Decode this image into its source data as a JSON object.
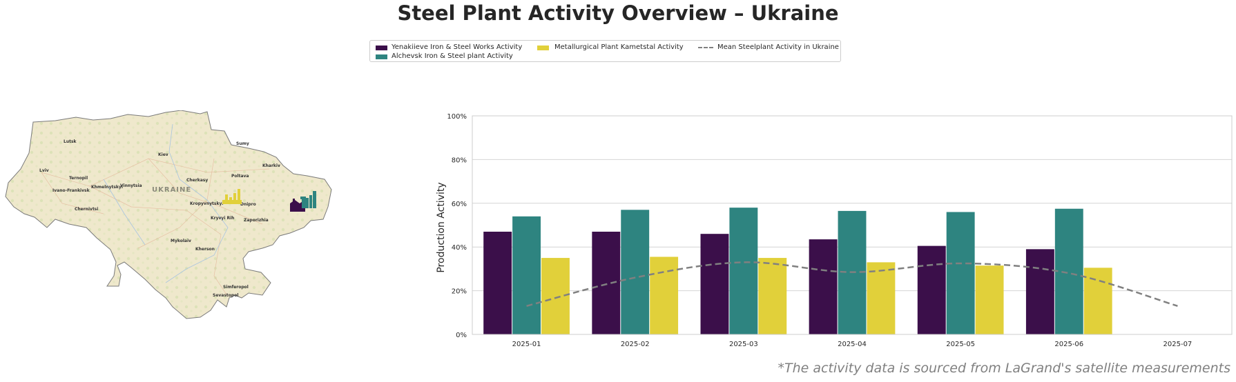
{
  "title": "Steel Plant Activity Overview – Ukraine",
  "legend": {
    "items": [
      {
        "label": "Yenakiieve Iron & Steel Works Activity",
        "color": "#3b0f4a"
      },
      {
        "label": "Alchevsk Iron & Steel plant Activity",
        "color": "#2e8480"
      },
      {
        "label": "Metallurgical Plant Kametstal Activity",
        "color": "#e1d03a"
      },
      {
        "label": "Mean Steelplant Activity in Ukraine",
        "color": "#808080"
      }
    ]
  },
  "map": {
    "country_label": "UKRAINE",
    "cities": [
      "Lutsk",
      "Kiev",
      "Kharkiv",
      "Lviv",
      "Ternopil",
      "Sumy",
      "Poltava",
      "Cherkasy",
      "Khmelnytskyi",
      "Vinnytsia",
      "Ivano-Frankivsk",
      "Kropyvnytskyi",
      "Dnipro",
      "Chernivtsi",
      "Kryvyi Rih",
      "Zaporizhia",
      "Mykolaiv",
      "Kherson",
      "Simferopol",
      "Sevastopol"
    ],
    "plant_icons": [
      "factory-icon-yellow",
      "factory-icon-purple",
      "factory-icon-teal"
    ]
  },
  "chart_data": {
    "type": "bar",
    "categories": [
      "2025-01",
      "2025-02",
      "2025-03",
      "2025-04",
      "2025-05",
      "2025-06",
      "2025-07"
    ],
    "series": [
      {
        "name": "Yenakiieve Iron & Steel Works Activity",
        "color": "#3b0f4a",
        "values": [
          47,
          47,
          46,
          43.5,
          40.5,
          39,
          null
        ]
      },
      {
        "name": "Alchevsk Iron & Steel plant Activity",
        "color": "#2e8480",
        "values": [
          54,
          57,
          58,
          56.5,
          56,
          57.5,
          null
        ]
      },
      {
        "name": "Metallurgical Plant Kametstal Activity",
        "color": "#e1d03a",
        "values": [
          35,
          35.5,
          35,
          33,
          31.5,
          30.5,
          null
        ]
      },
      {
        "name": "Mean Steelplant Activity in Ukraine",
        "color": "#808080",
        "type": "line",
        "style": "dashed",
        "values": [
          13,
          26,
          33,
          28.5,
          32.5,
          28,
          13
        ]
      }
    ],
    "ylabel": "Production Activity",
    "xlabel": "",
    "ylim": [
      0,
      100
    ],
    "yticks": [
      "0%",
      "20%",
      "40%",
      "60%",
      "80%",
      "100%"
    ],
    "grid": true
  },
  "source_note": "*The activity data is sourced from LaGrand's satellite measurements"
}
